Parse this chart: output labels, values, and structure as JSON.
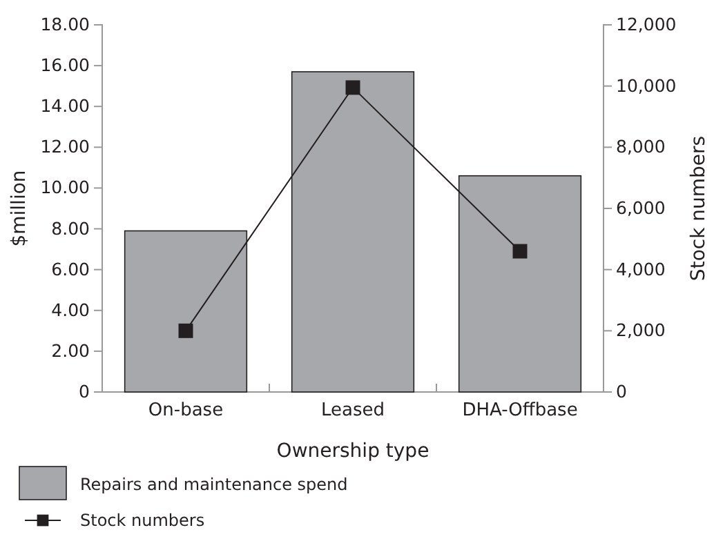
{
  "chart_data": {
    "type": "bar",
    "categories": [
      "On-base",
      "Leased",
      "DHA-Offbase"
    ],
    "xlabel": "Ownership type",
    "ylabel": "$million",
    "y2label": "Stock numbers",
    "series": [
      {
        "name": "Repairs and maintenance spend",
        "color": "#a7a8ab",
        "values": [
          7.9,
          15.7,
          10.6
        ]
      },
      {
        "name": "Stock numbers",
        "type": "line",
        "axis": "y2",
        "color": "#231f20",
        "marker": "square",
        "values": [
          2000,
          9950,
          4600
        ]
      }
    ],
    "ylim": [
      0,
      18
    ],
    "yticks": [
      {
        "value": 0,
        "label": "0"
      },
      {
        "value": 2,
        "label": "2.00"
      },
      {
        "value": 4,
        "label": "4.00"
      },
      {
        "value": 6,
        "label": "6.00"
      },
      {
        "value": 8,
        "label": "8.00"
      },
      {
        "value": 10,
        "label": "10.00"
      },
      {
        "value": 12,
        "label": "12.00"
      },
      {
        "value": 14,
        "label": "14.00"
      },
      {
        "value": 16,
        "label": "16.00"
      },
      {
        "value": 18,
        "label": "18.00"
      }
    ],
    "y2lim": [
      0,
      12000
    ],
    "y2ticks": [
      {
        "value": 0,
        "label": "0"
      },
      {
        "value": 2000,
        "label": "2,000"
      },
      {
        "value": 4000,
        "label": "4,000"
      },
      {
        "value": 6000,
        "label": "6,000"
      },
      {
        "value": 8000,
        "label": "8,000"
      },
      {
        "value": 10000,
        "label": "10,000"
      },
      {
        "value": 12000,
        "label": "12,000"
      }
    ],
    "grid": false,
    "legend": "bottom"
  }
}
